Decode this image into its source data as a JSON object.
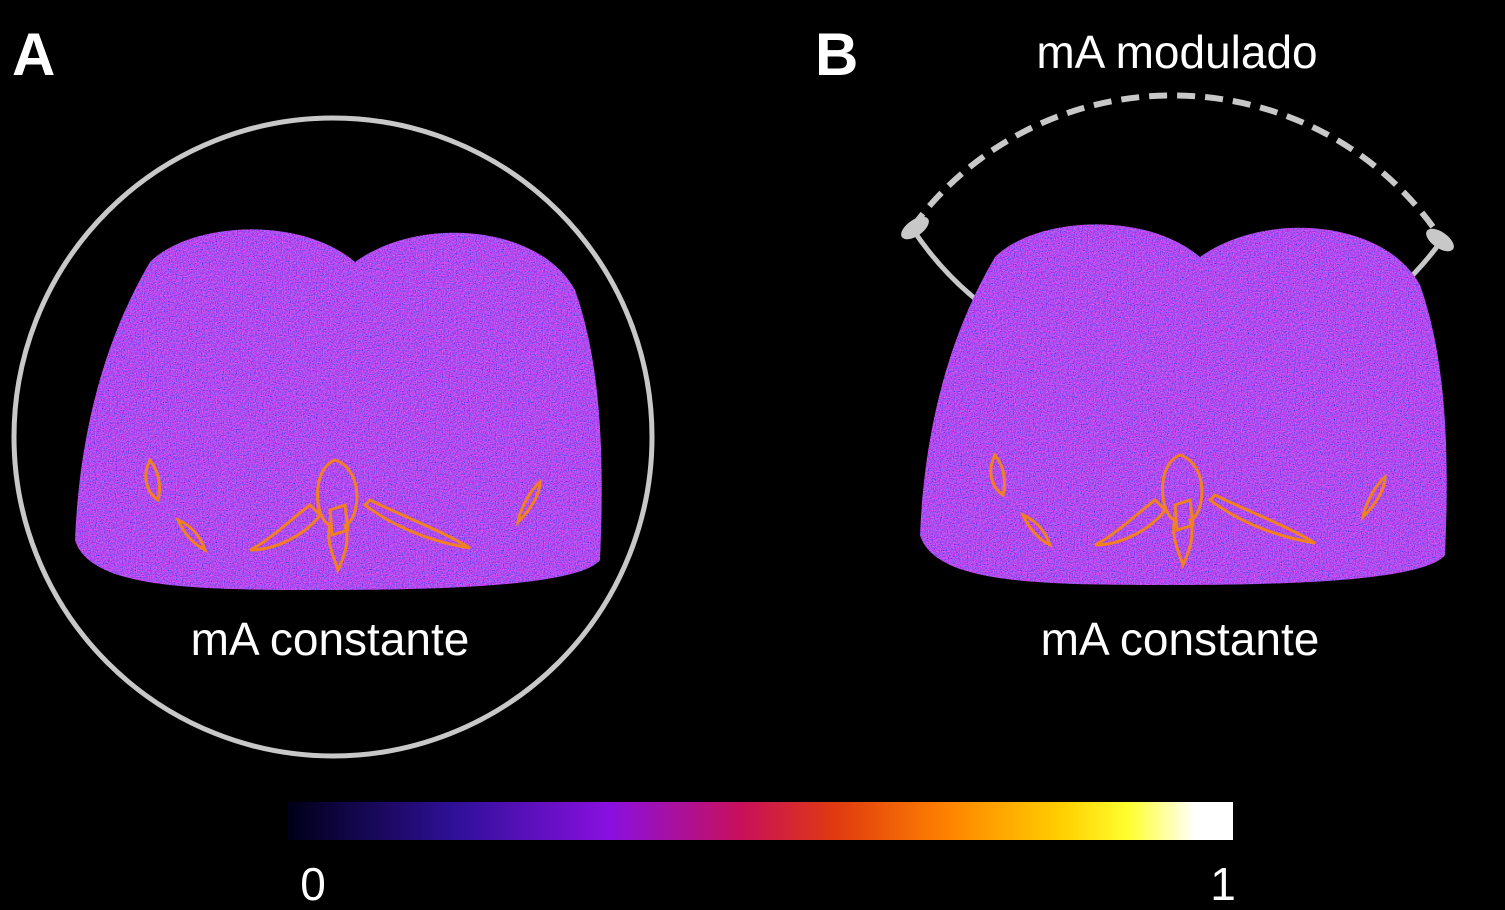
{
  "panels": [
    {
      "label": "A",
      "bottom_label": "mA constante"
    },
    {
      "label": "B",
      "top_label": "mA modulado",
      "bottom_label": "mA constante"
    }
  ],
  "colorbar": {
    "min": 0,
    "max": 1
  }
}
